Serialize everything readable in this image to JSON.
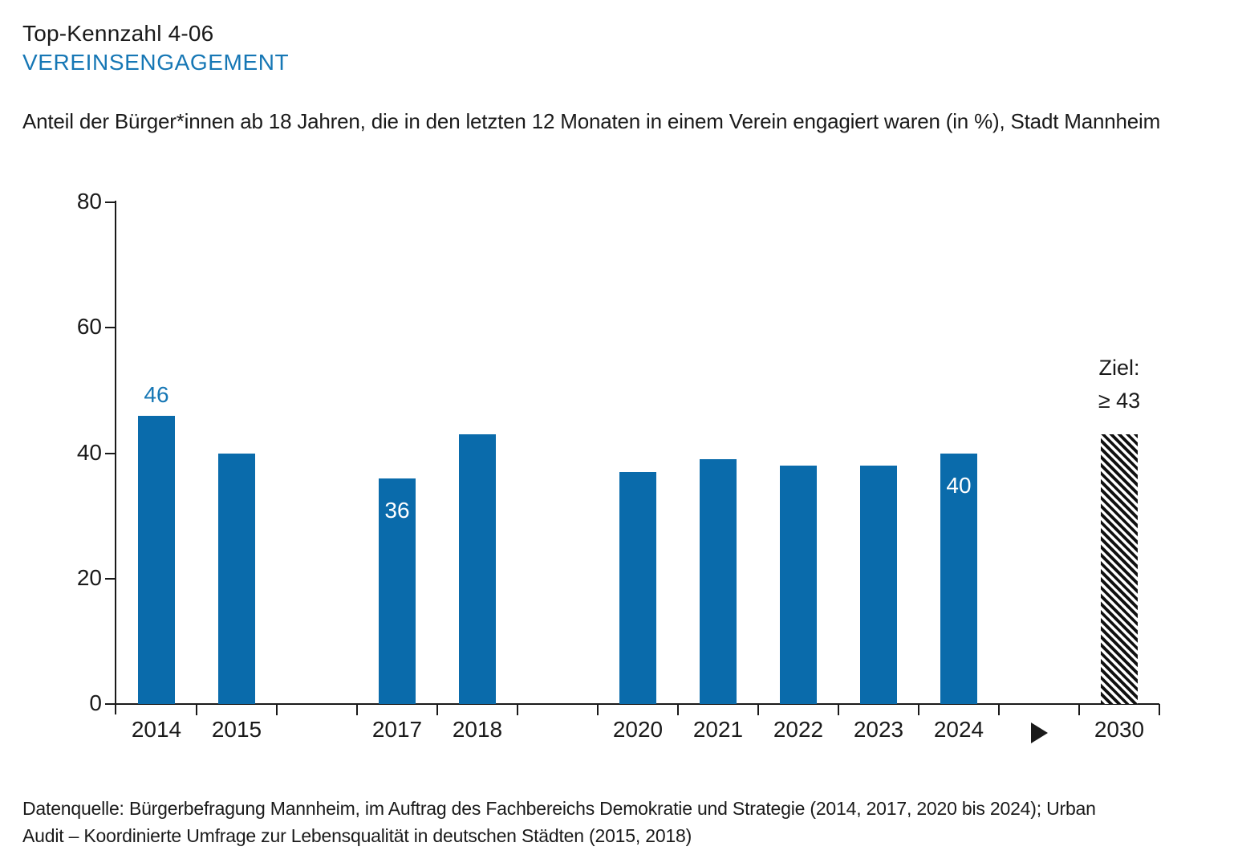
{
  "page": {
    "kicker": "Top-Kennzahl 4-06",
    "title": "VEREINSENGAGEMENT",
    "subtitle": "Anteil der Bürger*innen ab 18 Jahren, die in den letzten 12 Monaten in einem Verein engagiert waren (in %), Stadt Mannheim",
    "source_lines": [
      "Datenquelle: Bürgerbefragung Mannheim, im Auftrag des Fachbereichs Demokratie und Strategie (2014, 2017, 2020 bis 2024); Urban",
      "Audit – Koordinierte Umfrage zur Lebensqualität in deutschen Städten (2015, 2018)"
    ]
  },
  "colors": {
    "bar_blue": "#0a6bab",
    "accent_blue": "#1677b5",
    "axis_black": "#1a1a1a",
    "inside_label_white": "#ffffff"
  },
  "chart_data": {
    "type": "bar",
    "title": "VEREINSENGAGEMENT",
    "xlabel": "",
    "ylabel": "",
    "unit": "%",
    "ylim": [
      0,
      80
    ],
    "yticks": [
      0,
      20,
      40,
      60,
      80
    ],
    "grid": false,
    "legend": null,
    "slots": [
      {
        "label": "2014",
        "value": 46,
        "annotation": "46",
        "annotation_pos": "above"
      },
      {
        "label": "2015",
        "value": 40
      },
      {
        "label": "",
        "value": null
      },
      {
        "label": "2017",
        "value": 36,
        "annotation": "36",
        "annotation_pos": "inside"
      },
      {
        "label": "2018",
        "value": 43
      },
      {
        "label": "",
        "value": null
      },
      {
        "label": "2020",
        "value": 37
      },
      {
        "label": "2021",
        "value": 39
      },
      {
        "label": "2022",
        "value": 38
      },
      {
        "label": "2023",
        "value": 38
      },
      {
        "label": "2024",
        "value": 40,
        "annotation": "40",
        "annotation_pos": "inside"
      },
      {
        "label": "",
        "value": null,
        "arrow": true
      },
      {
        "label": "2030",
        "value": 43,
        "hatched": true,
        "goal_line1": "Ziel:",
        "goal_line2": "≥ 43"
      }
    ]
  }
}
